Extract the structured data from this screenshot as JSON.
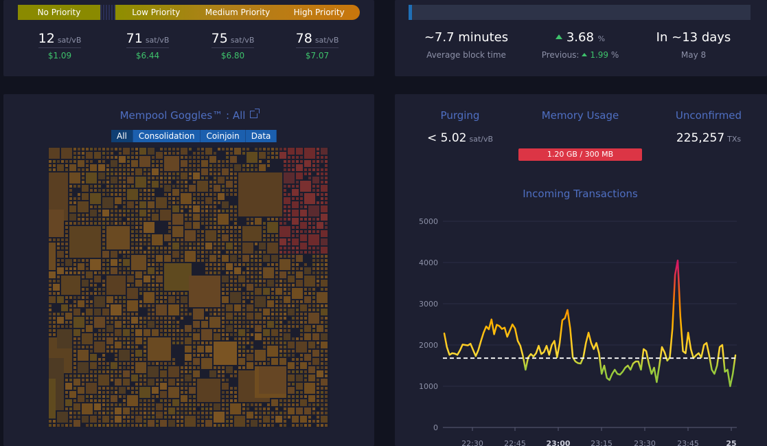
{
  "fees": {
    "bar": {
      "no_priority": "No Priority",
      "low": "Low Priority",
      "medium": "Medium Priority",
      "high": "High Priority"
    },
    "unit": "sat/vB",
    "columns": [
      {
        "value": "12",
        "usd": "$1.09"
      },
      {
        "value": "71",
        "usd": "$6.44"
      },
      {
        "value": "75",
        "usd": "$6.80"
      },
      {
        "value": "78",
        "usd": "$7.07"
      }
    ]
  },
  "difficulty": {
    "progress_fraction": 0.01,
    "block_time": "~7.7 minutes",
    "block_time_label": "Average block time",
    "change": "3.68",
    "change_unit": "%",
    "previous_label": "Previous:",
    "previous": "1.99",
    "previous_unit": "%",
    "eta": "In ~13 days",
    "eta_date": "May 8"
  },
  "goggles": {
    "title": "Mempool Goggles™ : All",
    "filters": [
      "All",
      "Consolidation",
      "Coinjoin",
      "Data"
    ],
    "active_filter": "All"
  },
  "stats": {
    "purging_label": "Purging",
    "purging_value": "< 5.02",
    "purging_unit": "sat/vB",
    "memory_label": "Memory Usage",
    "memory_value": "1.20 GB / 300 MB",
    "unconfirmed_label": "Unconfirmed",
    "unconfirmed_value": "225,257",
    "unconfirmed_unit": "TXs"
  },
  "colors": {
    "green": "#3ec26b",
    "blue_label": "#4f6fc2",
    "memory_bar": "#dc3545"
  },
  "chart_data": {
    "type": "line",
    "title": "Incoming Transactions",
    "ylim": [
      0,
      5000
    ],
    "yticks": [
      "0",
      "1000",
      "2000",
      "3000",
      "4000",
      "5000"
    ],
    "xticks": [
      "22:30",
      "22:45",
      "23:00",
      "23:15",
      "23:30",
      "23:45",
      "25"
    ],
    "bold_xticks": [
      "23:00",
      "25"
    ],
    "reference_line": 1680,
    "series": [
      {
        "values": [
          2280,
          1950,
          1760,
          1800,
          1790,
          1760,
          1870,
          2010,
          2000,
          1990,
          2030,
          1880,
          1730,
          1880,
          2100,
          2300,
          2450,
          2380,
          2620,
          2260,
          2490,
          2460,
          2390,
          2420,
          2200,
          2350,
          2500,
          2400,
          2100,
          1980,
          1730,
          1400,
          1700,
          1780,
          1720,
          1800,
          1980,
          1780,
          1830,
          1980,
          1760,
          2000,
          2100,
          1700,
          2050,
          2600,
          2650,
          2850,
          2400,
          1700,
          1600,
          1560,
          1550,
          1700,
          2050,
          2300,
          2050,
          1900,
          2050,
          1800,
          1300,
          1500,
          1200,
          1150,
          1300,
          1400,
          1300,
          1280,
          1350,
          1450,
          1500,
          1400,
          1550,
          1600,
          1600,
          1400,
          1900,
          1850,
          1550,
          1300,
          1450,
          1100,
          1500,
          1950,
          1820,
          1620,
          1700,
          2400,
          3700,
          4050,
          2700,
          1850,
          1800,
          2300,
          1900,
          1680,
          1750,
          1800,
          1700,
          2000,
          2050,
          1750,
          1400,
          1300,
          1500,
          1950,
          2000,
          1350,
          1400,
          1000,
          1300,
          1750
        ]
      }
    ]
  }
}
